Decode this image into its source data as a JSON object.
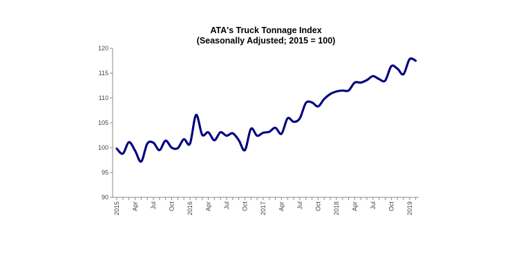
{
  "chart_data": {
    "type": "line",
    "title": "ATA's Truck Tonnage Index",
    "subtitle": "(Seasonally Adjusted; 2015 = 100)",
    "xlabel": "",
    "ylabel": "",
    "ylim": [
      90,
      120
    ],
    "yticks": [
      90,
      95,
      100,
      105,
      110,
      115,
      120
    ],
    "grid": false,
    "x": [
      "2015-01",
      "2015-02",
      "2015-03",
      "2015-04",
      "2015-05",
      "2015-06",
      "2015-07",
      "2015-08",
      "2015-09",
      "2015-10",
      "2015-11",
      "2015-12",
      "2016-01",
      "2016-02",
      "2016-03",
      "2016-04",
      "2016-05",
      "2016-06",
      "2016-07",
      "2016-08",
      "2016-09",
      "2016-10",
      "2016-11",
      "2016-12",
      "2017-01",
      "2017-02",
      "2017-03",
      "2017-04",
      "2017-05",
      "2017-06",
      "2017-07",
      "2017-08",
      "2017-09",
      "2017-10",
      "2017-11",
      "2017-12",
      "2018-01",
      "2018-02",
      "2018-03",
      "2018-04",
      "2018-05",
      "2018-06",
      "2018-07",
      "2018-08",
      "2018-09",
      "2018-10",
      "2018-11",
      "2018-12",
      "2019-01",
      "2019-02"
    ],
    "xtick_labels": [
      "2015",
      "",
      "",
      "Apr",
      "",
      "",
      "Jul",
      "",
      "",
      "Oct",
      "",
      "",
      "2016",
      "",
      "",
      "Apr",
      "",
      "",
      "Jul",
      "",
      "",
      "Oct",
      "",
      "",
      "2017",
      "",
      "",
      "Apr",
      "",
      "",
      "Jul",
      "",
      "",
      "Oct",
      "",
      "",
      "2018",
      "",
      "",
      "Apr",
      "",
      "",
      "Jul",
      "",
      "",
      "Oct",
      "",
      "",
      "2019",
      ""
    ],
    "series": [
      {
        "color": "#000080",
        "values": [
          99.8,
          98.8,
          101.1,
          99.4,
          97.2,
          100.8,
          101.0,
          99.5,
          101.4,
          100.0,
          99.9,
          101.7,
          100.8,
          106.6,
          102.6,
          103.1,
          101.5,
          103.1,
          102.4,
          102.9,
          101.5,
          99.5,
          103.8,
          102.4,
          103.0,
          103.2,
          104.0,
          102.8,
          105.9,
          105.2,
          105.9,
          109.0,
          109.1,
          108.3,
          109.8,
          110.8,
          111.3,
          111.5,
          111.5,
          113.1,
          113.1,
          113.6,
          114.4,
          113.8,
          113.5,
          116.4,
          115.9,
          114.8,
          117.8,
          117.5
        ]
      }
    ]
  }
}
